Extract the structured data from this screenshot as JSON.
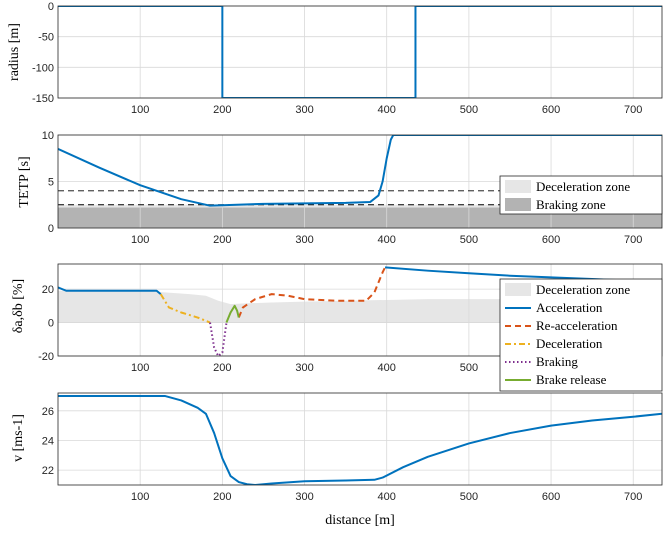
{
  "chart_data": [
    {
      "type": "line",
      "ylabel": "radius [m]",
      "xlim": [
        0,
        735
      ],
      "ylim": [
        -150,
        0
      ],
      "xticks": [
        100,
        200,
        300,
        400,
        500,
        600,
        700
      ],
      "yticks": [
        0,
        -50,
        -100,
        -150
      ],
      "grid": true,
      "series": [
        {
          "color": "#0072BD",
          "x": [
            0,
            200,
            200,
            435,
            435,
            735
          ],
          "y": [
            0,
            0,
            -150,
            -150,
            0,
            0
          ]
        }
      ]
    },
    {
      "type": "line",
      "ylabel": "TETP [s]",
      "xlim": [
        0,
        735
      ],
      "ylim": [
        0,
        10
      ],
      "xticks": [
        100,
        200,
        300,
        400,
        500,
        600,
        700
      ],
      "yticks": [
        0,
        5,
        10
      ],
      "grid": true,
      "thresholds": [
        4,
        2.5
      ],
      "zones": [
        {
          "name": "Deceleration zone",
          "color": "#e6e6e6",
          "y0": 0,
          "y1": 2.5
        },
        {
          "name": "Braking zone",
          "color": "#b3b3b3",
          "y0": 0,
          "y1": 2.2
        }
      ],
      "series": [
        {
          "color": "#0072BD",
          "x": [
            0,
            50,
            100,
            150,
            185,
            200,
            250,
            300,
            350,
            380,
            390,
            395,
            400,
            405,
            408,
            735
          ],
          "y": [
            8.5,
            6.5,
            4.6,
            3.1,
            2.4,
            2.45,
            2.6,
            2.65,
            2.7,
            2.8,
            3.5,
            5.0,
            7.5,
            9.5,
            10,
            10
          ]
        }
      ],
      "legend": {
        "placement": "bottom-right",
        "entries": [
          "Deceleration zone",
          "Braking zone"
        ]
      }
    },
    {
      "type": "line",
      "ylabel": "δa,δb [%]",
      "xlim": [
        0,
        735
      ],
      "ylim": [
        -20,
        35
      ],
      "xticks": [
        100,
        200,
        300,
        400,
        500,
        600,
        700
      ],
      "yticks": [
        20,
        0,
        -20
      ],
      "grid": true,
      "area": {
        "name": "Deceleration zone",
        "color": "#e6e6e6",
        "x": [
          0,
          100,
          130,
          160,
          180,
          195,
          210,
          230,
          260,
          300,
          350,
          400,
          450,
          500,
          600,
          735
        ],
        "y": [
          19,
          19,
          18,
          17,
          16,
          13,
          11,
          11.5,
          12,
          12.5,
          13,
          13.5,
          14,
          14,
          14,
          14
        ]
      },
      "series": [
        {
          "name": "Acceleration",
          "color": "#0072BD",
          "dash": "",
          "x": [
            0,
            10,
            50,
            100,
            120,
            125
          ],
          "y": [
            21,
            19,
            19,
            19,
            19,
            17
          ]
        },
        {
          "name": "Acceleration",
          "color": "#0072BD",
          "dash": "",
          "x": [
            398,
            450,
            500,
            550,
            600,
            650,
            700,
            735
          ],
          "y": [
            33,
            31,
            29.5,
            28,
            27,
            26,
            25,
            24.5
          ]
        },
        {
          "name": "Re-acceleration",
          "color": "#D95319",
          "dash": "6,4",
          "x": [
            220,
            225,
            240,
            260,
            280,
            300,
            340,
            375,
            385,
            395,
            398
          ],
          "y": [
            3,
            9,
            14,
            17,
            16,
            14,
            13,
            13,
            18,
            30,
            33
          ]
        },
        {
          "name": "Deceleration",
          "color": "#EDB120",
          "dash": "6,3,2,3",
          "x": [
            125,
            135,
            150,
            170,
            185
          ],
          "y": [
            17,
            9,
            6,
            3,
            0
          ]
        },
        {
          "name": "Braking",
          "color": "#7E2F8E",
          "dash": "1.5,2.5",
          "x": [
            185,
            190,
            195,
            200,
            205
          ],
          "y": [
            0,
            -15,
            -20,
            -18,
            0
          ]
        },
        {
          "name": "Brake release",
          "color": "#77AC30",
          "dash": "",
          "x": [
            205,
            210,
            215,
            218,
            220
          ],
          "y": [
            0,
            6,
            10,
            7,
            3
          ]
        }
      ],
      "legend": {
        "placement": "right",
        "entries": [
          "Deceleration zone",
          "Acceleration",
          "Re-acceleration",
          "Deceleration",
          "Braking",
          "Brake release"
        ]
      }
    },
    {
      "type": "line",
      "ylabel": "v [ms-1]",
      "xlabel": "distance [m]",
      "xlim": [
        0,
        735
      ],
      "ylim": [
        21,
        27.2
      ],
      "xticks": [
        100,
        200,
        300,
        400,
        500,
        600,
        700
      ],
      "yticks": [
        22,
        24,
        26
      ],
      "grid": true,
      "series": [
        {
          "color": "#0072BD",
          "x": [
            0,
            50,
            100,
            130,
            150,
            170,
            180,
            190,
            200,
            210,
            220,
            230,
            240,
            260,
            300,
            350,
            385,
            395,
            420,
            450,
            500,
            550,
            600,
            650,
            700,
            735
          ],
          "y": [
            27,
            27,
            27,
            27,
            26.7,
            26.2,
            25.8,
            24.5,
            22.8,
            21.6,
            21.2,
            21.05,
            21.0,
            21.1,
            21.25,
            21.3,
            21.35,
            21.5,
            22.2,
            22.9,
            23.8,
            24.5,
            25.0,
            25.35,
            25.6,
            25.8
          ]
        }
      ]
    }
  ]
}
